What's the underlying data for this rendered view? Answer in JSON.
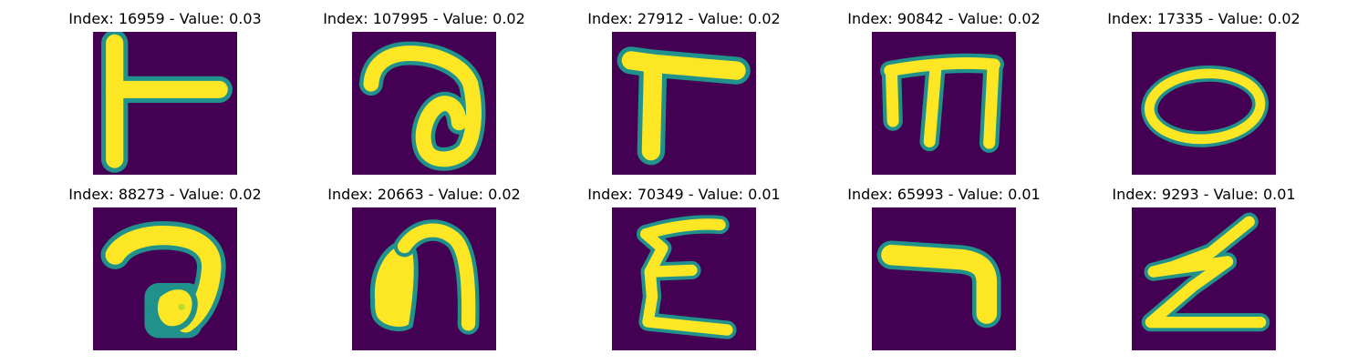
{
  "colors": {
    "background": "#440154",
    "foreground": "#fde725",
    "edge": "#21918c",
    "edge_dark": "#3b528b"
  },
  "panels": [
    {
      "title": "Index: 16959 - Value: 0.03",
      "glyph": "glyph-t-rotated"
    },
    {
      "title": "Index: 107995 - Value: 0.02",
      "glyph": "glyph-a-loop"
    },
    {
      "title": "Index: 27912 - Value: 0.02",
      "glyph": "glyph-r-corner"
    },
    {
      "title": "Index: 90842 - Value: 0.02",
      "glyph": "glyph-m-inverted"
    },
    {
      "title": "Index: 17335 - Value: 0.02",
      "glyph": "glyph-o-oval"
    },
    {
      "title": "Index: 88273 - Value: 0.02",
      "glyph": "glyph-a-filled"
    },
    {
      "title": "Index: 20663 - Value: 0.02",
      "glyph": "glyph-n-arch"
    },
    {
      "title": "Index: 70349 - Value: 0.01",
      "glyph": "glyph-epsilon"
    },
    {
      "title": "Index: 65993 - Value: 0.01",
      "glyph": "glyph-l-bent"
    },
    {
      "title": "Index: 9293 - Value: 0.01",
      "glyph": "glyph-z-zigzag"
    }
  ]
}
